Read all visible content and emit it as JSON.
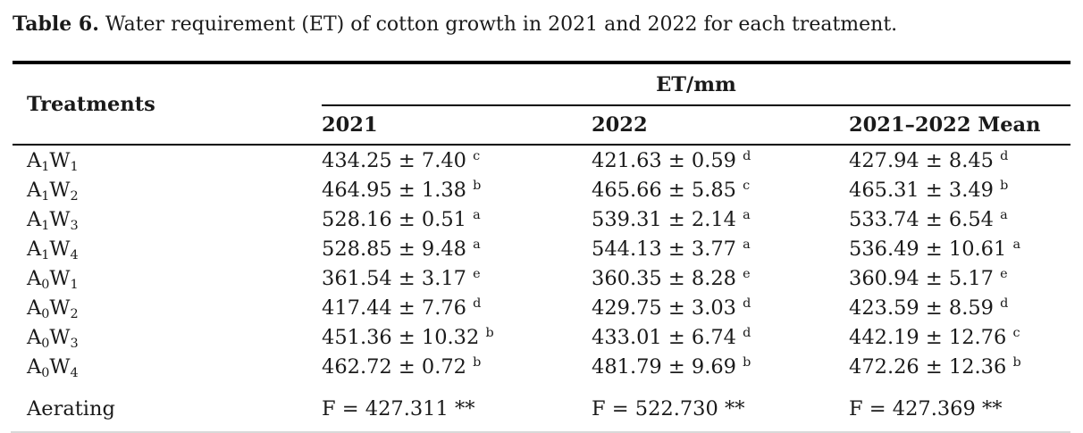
{
  "caption": {
    "label": "Table 6.",
    "text": " Water requirement (ET) of cotton growth in 2021 and 2022 for each treatment."
  },
  "table": {
    "treatments_header": "Treatments",
    "group_header": "ET/mm",
    "year_columns": [
      "2021",
      "2022",
      "2021–2022 Mean"
    ],
    "rows": [
      {
        "treatment": [
          [
            "A",
            "1"
          ],
          [
            "W",
            "1"
          ]
        ],
        "values": [
          {
            "text": "434.25 ± 7.40",
            "sup": "c"
          },
          {
            "text": "421.63 ± 0.59",
            "sup": "d"
          },
          {
            "text": "427.94 ± 8.45",
            "sup": "d"
          }
        ]
      },
      {
        "treatment": [
          [
            "A",
            "1"
          ],
          [
            "W",
            "2"
          ]
        ],
        "values": [
          {
            "text": "464.95 ± 1.38",
            "sup": "b"
          },
          {
            "text": "465.66 ± 5.85",
            "sup": "c"
          },
          {
            "text": "465.31 ± 3.49",
            "sup": "b"
          }
        ]
      },
      {
        "treatment": [
          [
            "A",
            "1"
          ],
          [
            "W",
            "3"
          ]
        ],
        "values": [
          {
            "text": "528.16 ± 0.51",
            "sup": "a"
          },
          {
            "text": "539.31 ± 2.14",
            "sup": "a"
          },
          {
            "text": "533.74 ± 6.54",
            "sup": "a"
          }
        ]
      },
      {
        "treatment": [
          [
            "A",
            "1"
          ],
          [
            "W",
            "4"
          ]
        ],
        "values": [
          {
            "text": "528.85 ± 9.48",
            "sup": "a"
          },
          {
            "text": "544.13 ± 3.77",
            "sup": "a"
          },
          {
            "text": "536.49 ± 10.61",
            "sup": "a"
          }
        ]
      },
      {
        "treatment": [
          [
            "A",
            "0"
          ],
          [
            "W",
            "1"
          ]
        ],
        "values": [
          {
            "text": "361.54 ± 3.17",
            "sup": "e"
          },
          {
            "text": "360.35 ± 8.28",
            "sup": "e"
          },
          {
            "text": "360.94 ± 5.17",
            "sup": "e"
          }
        ]
      },
      {
        "treatment": [
          [
            "A",
            "0"
          ],
          [
            "W",
            "2"
          ]
        ],
        "values": [
          {
            "text": "417.44 ± 7.76",
            "sup": "d"
          },
          {
            "text": "429.75 ± 3.03",
            "sup": "d"
          },
          {
            "text": "423.59 ± 8.59",
            "sup": "d"
          }
        ]
      },
      {
        "treatment": [
          [
            "A",
            "0"
          ],
          [
            "W",
            "3"
          ]
        ],
        "values": [
          {
            "text": "451.36 ± 10.32",
            "sup": "b"
          },
          {
            "text": "433.01 ± 6.74",
            "sup": "d"
          },
          {
            "text": "442.19 ± 12.76",
            "sup": "c"
          }
        ]
      },
      {
        "treatment": [
          [
            "A",
            "0"
          ],
          [
            "W",
            "4"
          ]
        ],
        "values": [
          {
            "text": "462.72 ± 0.72",
            "sup": "b"
          },
          {
            "text": "481.79 ± 9.69",
            "sup": "b"
          },
          {
            "text": "472.26 ± 12.36",
            "sup": "b"
          }
        ]
      },
      {
        "treatment": [
          [
            "Aerating",
            ""
          ]
        ],
        "values": [
          {
            "text": "F = 427.311 **",
            "sup": ""
          },
          {
            "text": "F = 522.730 **",
            "sup": ""
          },
          {
            "text": "F = 427.369 **",
            "sup": ""
          }
        ]
      }
    ]
  },
  "colors": {
    "text": "#1a1a1a",
    "rule": "#000000",
    "background": "#ffffff"
  }
}
